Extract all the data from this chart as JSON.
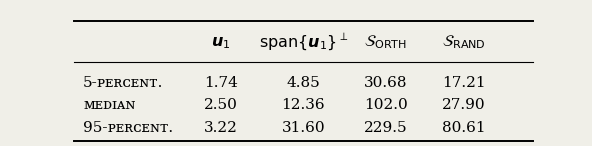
{
  "col_headers": [
    "$\\boldsymbol{u}_1$",
    "$\\mathrm{span}\\{\\boldsymbol{u}_1\\}^\\perp$",
    "$\\mathcal{S}_{\\mathrm{ORTH}}$",
    "$\\mathcal{S}_{\\mathrm{RAND}}$"
  ],
  "row_labels": [
    "5-ᴘᴇʀᴄᴇɴᴛ.",
    "ᴍᴇᴅɪᴀɴ",
    "95-ᴘᴇʀᴄᴇɴᴛ."
  ],
  "rows": [
    [
      "1.74",
      "4.85",
      "30.68",
      "17.21"
    ],
    [
      "2.50",
      "12.36",
      "102.0",
      "27.90"
    ],
    [
      "3.22",
      "31.60",
      "229.5",
      "80.61"
    ]
  ],
  "fig_width": 5.92,
  "fig_height": 1.46,
  "dpi": 100,
  "background_color": "#f0efe8"
}
